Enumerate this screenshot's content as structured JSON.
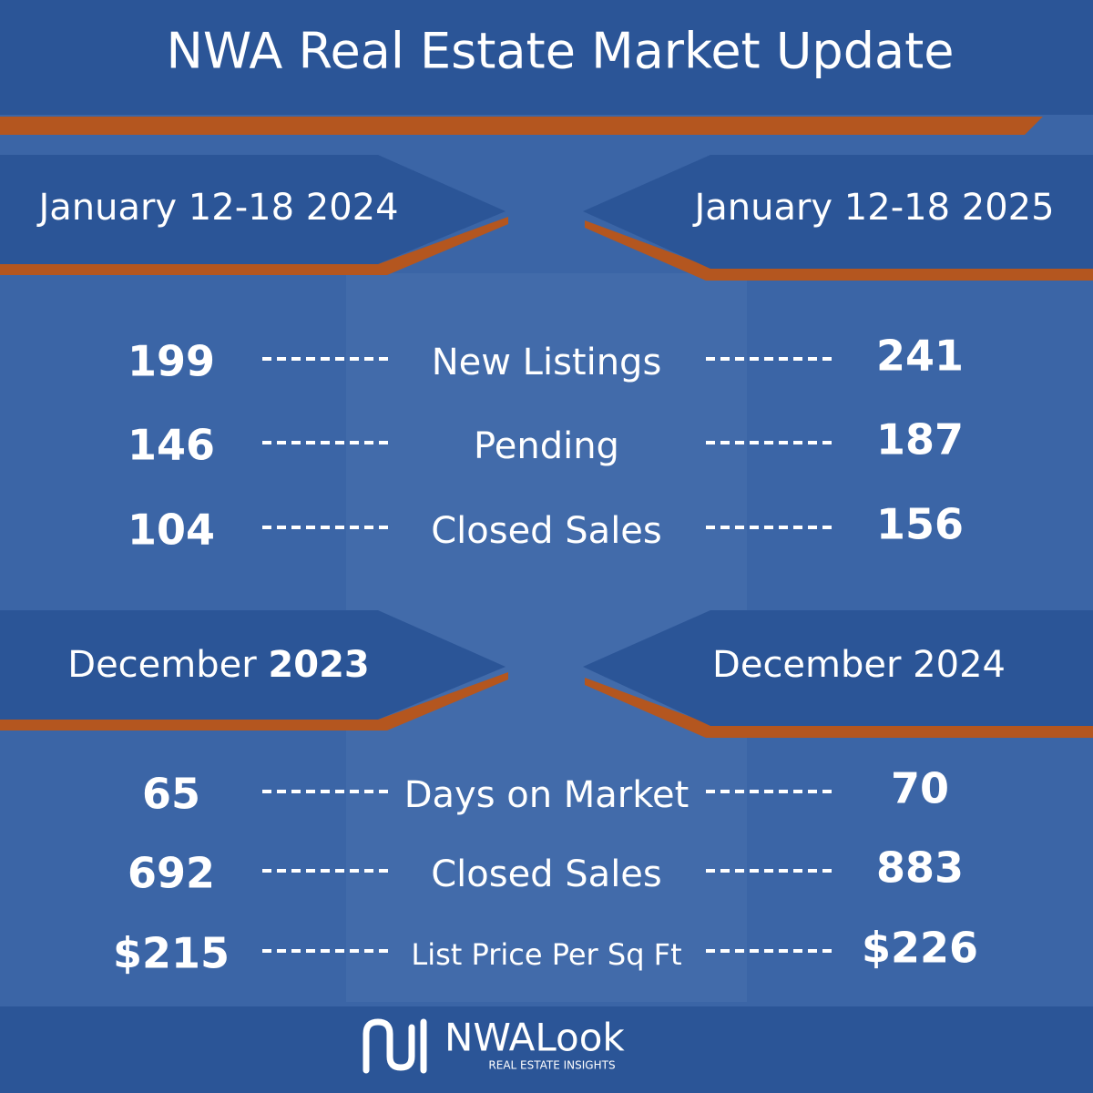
{
  "header": {
    "title": "NWA Real Estate Market Update"
  },
  "weekly": {
    "left_period": "January 12-18 2024",
    "right_period": "January 12-18 2025",
    "rows": [
      {
        "left": "199",
        "label": "New Listings",
        "right": "241"
      },
      {
        "left": "146",
        "label": "Pending",
        "right": "187"
      },
      {
        "left": "104",
        "label": "Closed Sales",
        "right": "156"
      }
    ]
  },
  "monthly": {
    "left_period": {
      "month": "December",
      "year": "2023"
    },
    "right_period": "December 2024",
    "rows": [
      {
        "left": "65",
        "label": "Days on Market",
        "right": "70"
      },
      {
        "left": "692",
        "label": "Closed Sales",
        "right": "883"
      },
      {
        "left": "$215",
        "label": "List Price Per Sq Ft",
        "right": "$226"
      }
    ]
  },
  "footer": {
    "brand": "NWALook",
    "tagline": "REAL ESTATE INSIGHTS"
  }
}
